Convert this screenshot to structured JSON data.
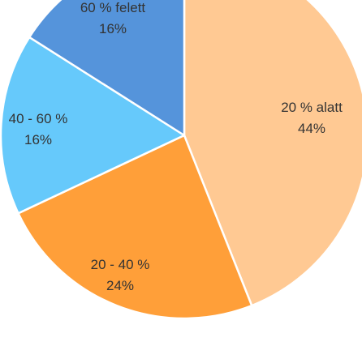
{
  "chart_data": {
    "type": "pie",
    "title": "",
    "slices": [
      {
        "category": "20 % alatt",
        "value": 44,
        "value_label": "44%",
        "color": "#ffc993"
      },
      {
        "category": "20 - 40 %",
        "value": 24,
        "value_label": "24%",
        "color": "#ff9f39"
      },
      {
        "category": "40 - 60 %",
        "value": 16,
        "value_label": "16%",
        "color": "#66c9fb"
      },
      {
        "category": "60 % felett",
        "value": 16,
        "value_label": "16%",
        "color": "#5594db"
      }
    ],
    "legend": "none",
    "data_labels": "category and percent on slices"
  }
}
